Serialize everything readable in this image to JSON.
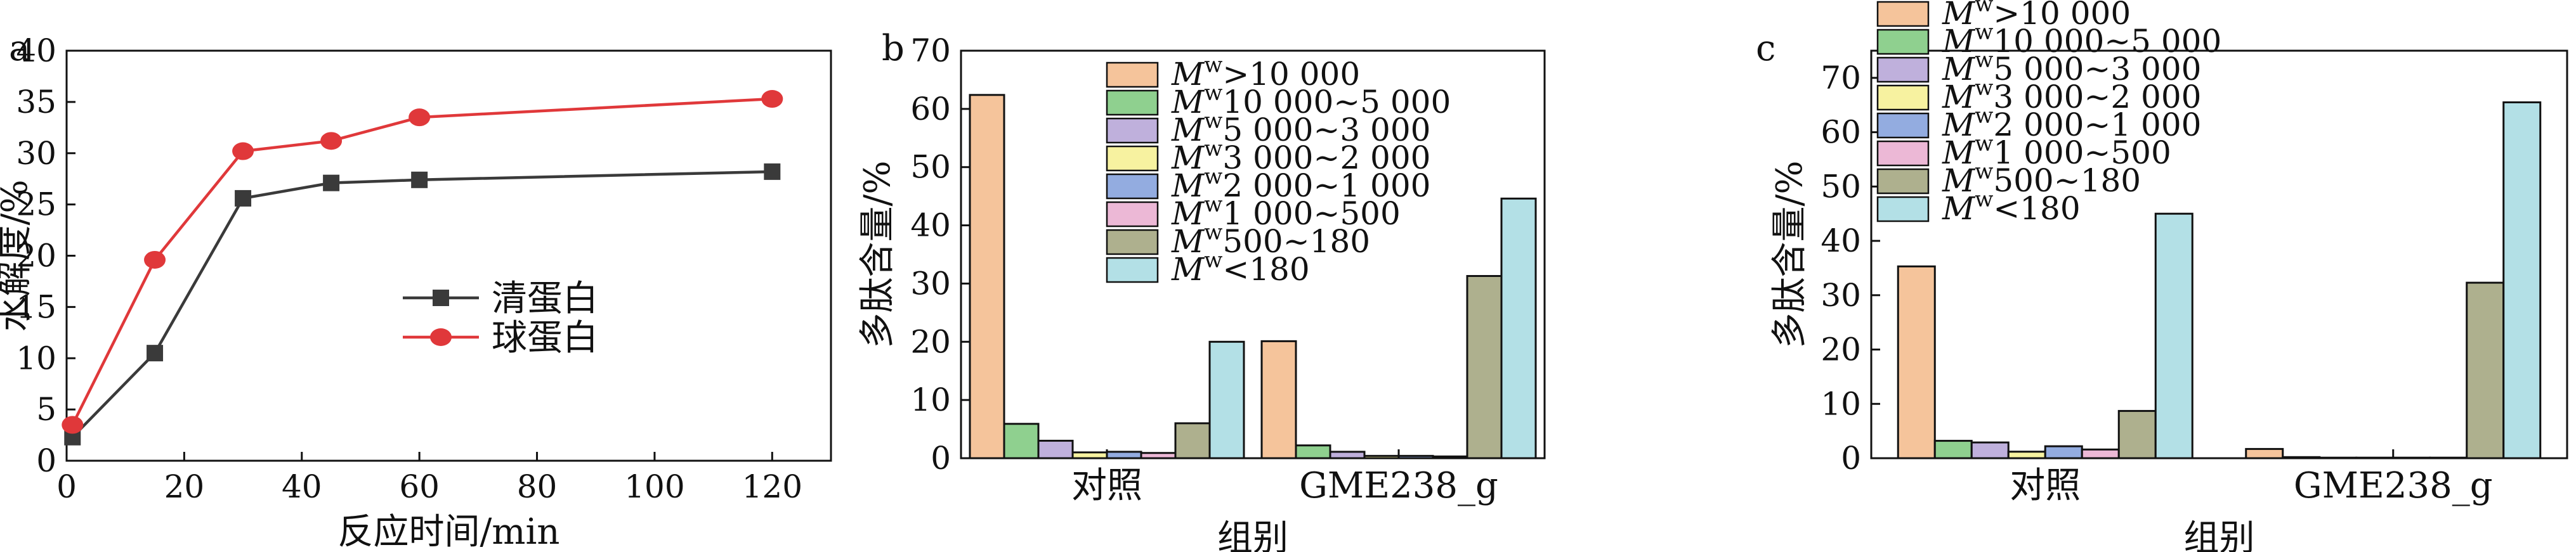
{
  "panels": [
    {
      "letter": "a",
      "chart_data": {
        "type": "line",
        "xlabel": "反应时间/min",
        "ylabel": "水解度/%",
        "xlim": [
          0,
          130
        ],
        "ylim": [
          0,
          40
        ],
        "xticks": [
          0,
          20,
          40,
          60,
          80,
          100,
          120
        ],
        "yticks": [
          0,
          5,
          10,
          15,
          20,
          25,
          30,
          35,
          40
        ],
        "grid": false,
        "legend": "center-left",
        "series": [
          {
            "name": "清蛋白",
            "color": "#3a3a3a",
            "marker": "square",
            "x": [
              1,
              15,
              30,
              45,
              60,
              120
            ],
            "y": [
              2.3,
              10.5,
              25.6,
              27.1,
              27.4,
              28.2
            ],
            "err": [
              0.3,
              0.3,
              0.7,
              0.3,
              0.3,
              0.3
            ]
          },
          {
            "name": "球蛋白",
            "color": "#e0383a",
            "marker": "circle",
            "x": [
              1,
              15,
              30,
              45,
              60,
              120
            ],
            "y": [
              3.5,
              19.6,
              30.2,
              31.2,
              33.5,
              35.3
            ],
            "err": [
              0.3,
              0.3,
              0.3,
              0.3,
              0.3,
              0.3
            ]
          }
        ]
      }
    },
    {
      "letter": "b",
      "chart_data": {
        "type": "bar",
        "xlabel": "组别",
        "ylabel": "多肽含量/%",
        "ylim": [
          0,
          70
        ],
        "yticks": [
          0,
          10,
          20,
          30,
          40,
          50,
          60,
          70
        ],
        "categories": [
          "对照",
          "GME238_g"
        ],
        "legend": "top-center",
        "series": [
          {
            "name": "Mw>10 000",
            "sym": "M",
            "sub": "w",
            "range": ">10 000",
            "color": "#f5c49b",
            "values": [
              62.4,
              20.1
            ]
          },
          {
            "name": "Mw10 000~5 000",
            "sym": "M",
            "sub": "w",
            "range": "10 000~5 000",
            "color": "#8fd08f",
            "values": [
              5.9,
              2.2
            ]
          },
          {
            "name": "Mw5 000~3 000",
            "sym": "M",
            "sub": "w",
            "range": "5 000~3 000",
            "color": "#bfb0dc",
            "values": [
              3.0,
              1.1
            ]
          },
          {
            "name": "Mw3 000~2 000",
            "sym": "M",
            "sub": "w",
            "range": "3 000~2 000",
            "color": "#f7f2a0",
            "values": [
              1.0,
              0.4
            ]
          },
          {
            "name": "Mw2 000~1 000",
            "sym": "M",
            "sub": "w",
            "range": "2 000~1 000",
            "color": "#93ace0",
            "values": [
              1.1,
              0.4
            ]
          },
          {
            "name": "Mw1 000~500",
            "sym": "M",
            "sub": "w",
            "range": "1 000~500",
            "color": "#ecb8d6",
            "values": [
              0.9,
              0.3
            ]
          },
          {
            "name": "Mw500~180",
            "sym": "M",
            "sub": "w",
            "range": "500~180",
            "color": "#aeb08e",
            "values": [
              6.0,
              31.3
            ]
          },
          {
            "name": "Mw<180",
            "sym": "M",
            "sub": "w",
            "range": "<180",
            "color": "#b3e0e6",
            "values": [
              20.0,
              44.6
            ]
          }
        ]
      }
    },
    {
      "letter": "c",
      "chart_data": {
        "type": "bar",
        "xlabel": "组别",
        "ylabel": "多肽含量/%",
        "ylim": [
          0,
          75
        ],
        "yticks": [
          0,
          10,
          20,
          30,
          40,
          50,
          60,
          70
        ],
        "categories": [
          "对照",
          "GME238_g"
        ],
        "legend": "top-left",
        "series": [
          {
            "name": "Mw>10 000",
            "sym": "M",
            "sub": "w",
            "range": ">10 000",
            "color": "#f5c49b",
            "values": [
              35.3,
              1.7
            ]
          },
          {
            "name": "Mw10 000~5 000",
            "sym": "M",
            "sub": "w",
            "range": "10 000~5 000",
            "color": "#8fd08f",
            "values": [
              3.2,
              0.2
            ]
          },
          {
            "name": "Mw5 000~3 000",
            "sym": "M",
            "sub": "w",
            "range": "5 000~3 000",
            "color": "#bfb0dc",
            "values": [
              2.9,
              0.1
            ]
          },
          {
            "name": "Mw3 000~2 000",
            "sym": "M",
            "sub": "w",
            "range": "3 000~2 000",
            "color": "#f7f2a0",
            "values": [
              1.2,
              0.1
            ]
          },
          {
            "name": "Mw2 000~1 000",
            "sym": "M",
            "sub": "w",
            "range": "2 000~1 000",
            "color": "#93ace0",
            "values": [
              2.2,
              0.1
            ]
          },
          {
            "name": "Mw1 000~500",
            "sym": "M",
            "sub": "w",
            "range": "1 000~500",
            "color": "#ecb8d6",
            "values": [
              1.6,
              0.1
            ]
          },
          {
            "name": "Mw500~180",
            "sym": "M",
            "sub": "w",
            "range": "500~180",
            "color": "#aeb08e",
            "values": [
              8.7,
              32.3
            ]
          },
          {
            "name": "Mw<180",
            "sym": "M",
            "sub": "w",
            "range": "<180",
            "color": "#b3e0e6",
            "values": [
              45.0,
              65.5
            ]
          }
        ]
      }
    }
  ]
}
